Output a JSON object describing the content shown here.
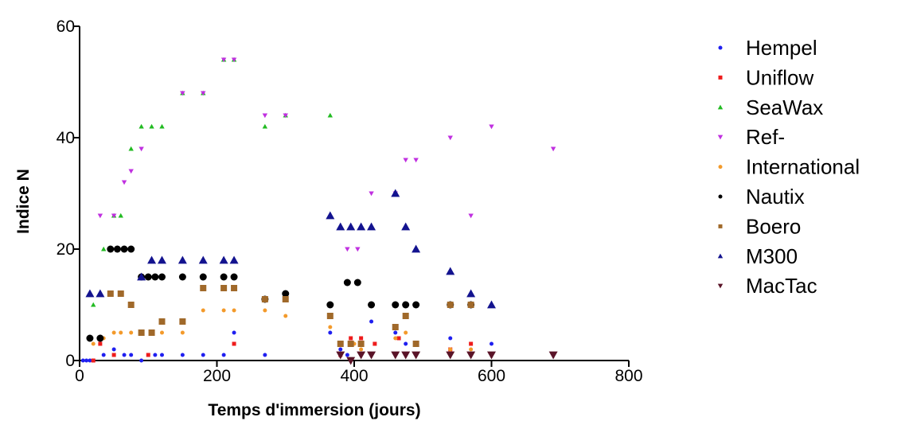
{
  "chart_data": {
    "type": "scatter",
    "xlabel": "Temps d'immersion (jours)",
    "ylabel": "Indice N",
    "xlim": [
      0,
      800
    ],
    "ylim": [
      0,
      60
    ],
    "xticks": [
      "0",
      "200",
      "400",
      "600",
      "800"
    ],
    "yticks": [
      "0",
      "20",
      "40",
      "60"
    ],
    "grid": false,
    "legend_position": "right",
    "series": [
      {
        "name": "Hempel",
        "color": "#1f1ff0",
        "marker": "circle-small",
        "x": [
          5,
          10,
          15,
          20,
          35,
          50,
          65,
          75,
          90,
          110,
          120,
          150,
          180,
          210,
          225,
          270,
          365,
          380,
          390,
          410,
          425,
          460,
          475,
          540,
          570,
          600
        ],
        "y": [
          0,
          0,
          0,
          0,
          1,
          2,
          1,
          1,
          0,
          1,
          1,
          1,
          1,
          1,
          5,
          1,
          5,
          2,
          1,
          3,
          7,
          5,
          3,
          4,
          1,
          3
        ]
      },
      {
        "name": "Uniflow",
        "color": "#ee1c1c",
        "marker": "square-small",
        "x": [
          20,
          30,
          50,
          100,
          225,
          380,
          395,
          410,
          430,
          465,
          540,
          570
        ],
        "y": [
          0,
          3,
          1,
          1,
          3,
          1,
          4,
          4,
          3,
          4,
          2,
          3
        ]
      },
      {
        "name": "SeaWax",
        "color": "#22bb22",
        "marker": "triangle-up-small",
        "x": [
          20,
          35,
          50,
          60,
          75,
          90,
          105,
          120,
          150,
          180,
          210,
          225,
          270,
          300,
          365
        ],
        "y": [
          10,
          20,
          26,
          26,
          38,
          42,
          42,
          42,
          48,
          48,
          54,
          54,
          42,
          44,
          44
        ]
      },
      {
        "name": "Ref-",
        "color": "#c030e0",
        "marker": "triangle-down-small",
        "x": [
          30,
          50,
          65,
          75,
          90,
          150,
          180,
          210,
          225,
          270,
          300,
          390,
          405,
          425,
          460,
          475,
          490,
          540,
          570,
          600,
          690
        ],
        "y": [
          26,
          26,
          32,
          34,
          38,
          48,
          48,
          54,
          54,
          44,
          44,
          20,
          20,
          30,
          30,
          36,
          36,
          40,
          26,
          42,
          38
        ]
      },
      {
        "name": "International",
        "color": "#f39a2b",
        "marker": "circle-small",
        "x": [
          20,
          35,
          50,
          60,
          75,
          90,
          105,
          120,
          150,
          180,
          210,
          225,
          270,
          300,
          365,
          380,
          400,
          410,
          460,
          475,
          540,
          570
        ],
        "y": [
          3,
          4,
          5,
          5,
          5,
          5,
          5,
          5,
          5,
          9,
          9,
          9,
          9,
          8,
          6,
          3,
          3,
          2,
          4,
          5,
          2,
          2
        ]
      },
      {
        "name": "Nautix",
        "color": "#000000",
        "marker": "circle",
        "x": [
          15,
          30,
          45,
          55,
          65,
          75,
          90,
          100,
          110,
          120,
          150,
          180,
          210,
          225,
          270,
          300,
          365,
          390,
          405,
          425,
          460,
          475,
          490,
          540,
          570
        ],
        "y": [
          4,
          4,
          20,
          20,
          20,
          20,
          15,
          15,
          15,
          15,
          15,
          15,
          15,
          15,
          11,
          12,
          10,
          14,
          14,
          10,
          10,
          10,
          10,
          10,
          10
        ]
      },
      {
        "name": "Boero",
        "color": "#a0692a",
        "marker": "square",
        "x": [
          45,
          60,
          75,
          90,
          105,
          120,
          150,
          180,
          210,
          225,
          270,
          300,
          365,
          380,
          395,
          410,
          460,
          475,
          490,
          540,
          570
        ],
        "y": [
          12,
          12,
          10,
          5,
          5,
          7,
          7,
          13,
          13,
          13,
          11,
          11,
          8,
          3,
          3,
          3,
          6,
          8,
          3,
          10,
          10
        ]
      },
      {
        "name": "M300",
        "color": "#13138f",
        "marker": "triangle-up",
        "x": [
          15,
          30,
          90,
          105,
          120,
          150,
          180,
          210,
          225,
          365,
          380,
          395,
          410,
          425,
          460,
          475,
          490,
          540,
          570,
          600
        ],
        "y": [
          12,
          12,
          15,
          18,
          18,
          18,
          18,
          18,
          18,
          26,
          24,
          24,
          24,
          24,
          30,
          24,
          20,
          16,
          12,
          10
        ]
      },
      {
        "name": "MacTac",
        "color": "#5a1428",
        "marker": "triangle-down",
        "x": [
          380,
          395,
          410,
          425,
          460,
          475,
          490,
          540,
          570,
          600,
          690
        ],
        "y": [
          1,
          0,
          1,
          1,
          1,
          1,
          1,
          1,
          1,
          1,
          1
        ]
      }
    ]
  }
}
